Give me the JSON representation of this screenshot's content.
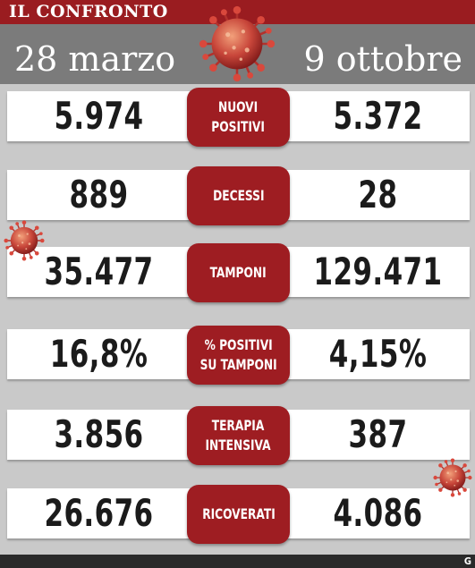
{
  "header": {
    "title": "IL CONFRONTO",
    "date_left": "28 marzo",
    "date_right": "9 ottobre"
  },
  "rows": [
    {
      "label": "NUOVI\nPOSITIVI",
      "left": "5.974",
      "right": "5.372"
    },
    {
      "label": "DECESSI",
      "left": "889",
      "right": "28"
    },
    {
      "label": "TAMPONI",
      "left": "35.477",
      "right": "129.471"
    },
    {
      "label": "% POSITIVI\nSU TAMPONI",
      "left": "16,8%",
      "right": "4,15%"
    },
    {
      "label": "TERAPIA\nINTENSIVA",
      "left": "3.856",
      "right": "387"
    },
    {
      "label": "RICOVERATI",
      "left": "26.676",
      "right": "4.086"
    }
  ],
  "footer": {
    "mark": "G"
  },
  "colors": {
    "banner": "#9a1c20",
    "date_bar": "#7b7b7b",
    "label_box": "#9e1d22",
    "background": "#c9c9c9"
  },
  "icons": [
    "coronavirus-icon"
  ]
}
